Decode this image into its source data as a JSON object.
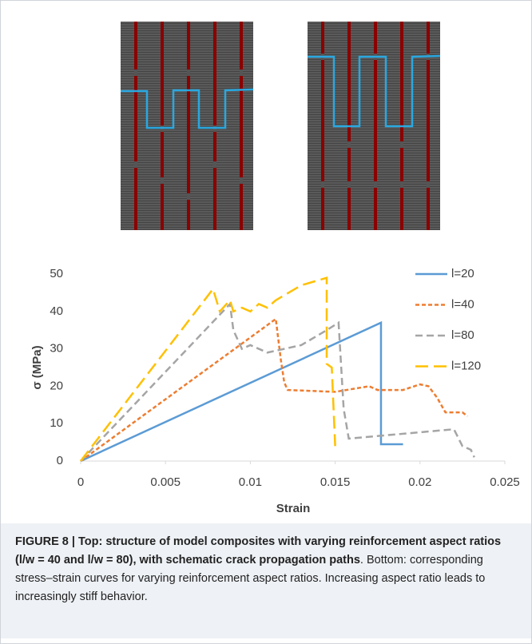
{
  "chart_data": {
    "type": "line",
    "xlabel": "Strain",
    "ylabel": "σ (MPa)",
    "xlim": [
      0,
      0.025
    ],
    "xticks": [
      0,
      0.005,
      0.01,
      0.015,
      0.02,
      0.025
    ],
    "ylim": [
      0,
      50
    ],
    "yticks": [
      0,
      10,
      20,
      30,
      40,
      50
    ],
    "grid": false,
    "legend": "upper right",
    "series": [
      {
        "name": "l=20",
        "color": "#5b9bd5",
        "dash": "solid",
        "x": [
          0,
          0.0177,
          0.0177,
          0.019
        ],
        "values": [
          0,
          37,
          4.5,
          4.5
        ]
      },
      {
        "name": "l=40",
        "color": "#ed7d31",
        "dash": "short",
        "x": [
          0,
          0.0115,
          0.0118,
          0.012,
          0.0122,
          0.015,
          0.017,
          0.0175,
          0.019,
          0.02,
          0.0205,
          0.021,
          0.0215,
          0.0225,
          0.0228
        ],
        "values": [
          0,
          38,
          27,
          21,
          19,
          18.5,
          20,
          19,
          19,
          20.5,
          20,
          17,
          13,
          13,
          12
        ]
      },
      {
        "name": "l=80",
        "color": "#a5a5a5",
        "dash": "medium",
        "x": [
          0,
          0.0088,
          0.009,
          0.0095,
          0.01,
          0.011,
          0.012,
          0.013,
          0.0145,
          0.0152,
          0.0155,
          0.0158,
          0.022,
          0.0225,
          0.023,
          0.0232
        ],
        "values": [
          0,
          42,
          35,
          30,
          31,
          29,
          30,
          31,
          35,
          37,
          14,
          6,
          8.5,
          4,
          3,
          1
        ]
      },
      {
        "name": "l=120",
        "color": "#ffc000",
        "dash": "long",
        "x": [
          0,
          0.0078,
          0.0082,
          0.0088,
          0.009,
          0.0095,
          0.01,
          0.0105,
          0.011,
          0.0115,
          0.013,
          0.0145,
          0.0145,
          0.0148,
          0.015
        ],
        "values": [
          0,
          46,
          40,
          43,
          40,
          41,
          40,
          42,
          41,
          43,
          47,
          49,
          26,
          25,
          4
        ]
      }
    ]
  },
  "caption": {
    "bold": "FIGURE 8 | Top: structure of model composites with varying reinforcement aspect ratios (l/w = 40 and l/w = 80), with schematic crack propagation paths",
    "text": ". Bottom: corresponding stress–strain curves for varying reinforcement aspect ratios. Increasing aspect ratio leads to increasingly stiff behavior."
  }
}
